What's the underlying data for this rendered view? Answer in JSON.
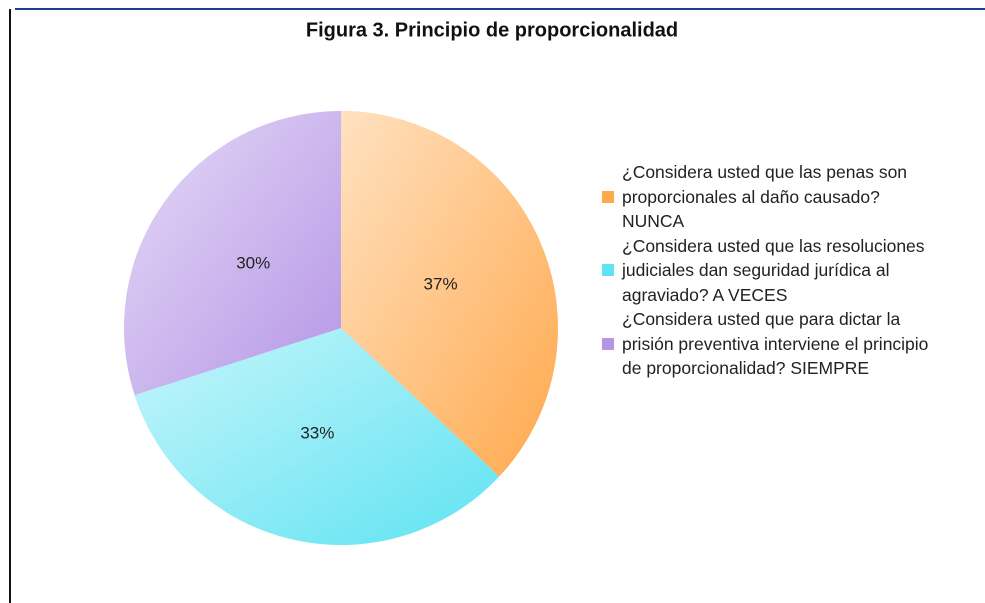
{
  "chart_data": {
    "type": "pie",
    "title": "Figura 3. Principio de proporcionalidad",
    "categories": [
      "¿Considera usted que las penas son proporcionales al daño causado? NUNCA",
      "¿Considera usted que las resoluciones judiciales dan seguridad jurídica al agraviado? A VECES",
      "¿Considera usted que para dictar la prisión preventiva interviene el principio de proporcionalidad? SIEMPRE"
    ],
    "values": [
      37,
      33,
      30
    ],
    "value_labels": [
      "37%",
      "33%",
      "30%"
    ],
    "colors": [
      "#ffa94d",
      "#5fe3f2",
      "#b596e6"
    ],
    "legend": "right"
  }
}
